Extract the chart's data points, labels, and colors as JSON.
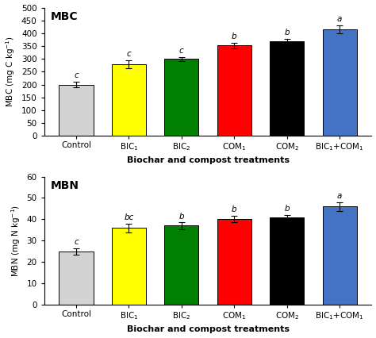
{
  "mbc": {
    "title": "MBC",
    "categories": [
      "Control",
      "BIC$_1$",
      "BIC$_2$",
      "COM$_1$",
      "COM$_2$",
      "BIC$_1$+COM$_1$"
    ],
    "values": [
      200,
      280,
      300,
      352,
      368,
      415
    ],
    "errors": [
      10,
      15,
      8,
      12,
      10,
      15
    ],
    "letters": [
      "c",
      "c",
      "c",
      "b",
      "b",
      "a"
    ],
    "colors": [
      "#d3d3d3",
      "#ffff00",
      "#008000",
      "#ff0000",
      "#000000",
      "#4472c4"
    ],
    "ylabel": "MBC (mg C kg$^{-1}$)",
    "xlabel": "Biochar and compost treatments",
    "ylim": [
      0,
      500
    ],
    "yticks": [
      0,
      50,
      100,
      150,
      200,
      250,
      300,
      350,
      400,
      450,
      500
    ]
  },
  "mbn": {
    "title": "MBN",
    "categories": [
      "Control",
      "BIC$_1$",
      "BIC$_2$",
      "COM$_1$",
      "COM$_2$",
      "BIC$_1$+COM$_1$"
    ],
    "values": [
      25,
      36,
      37,
      40,
      41,
      46
    ],
    "errors": [
      1.5,
      2.0,
      1.5,
      1.5,
      1.0,
      2.0
    ],
    "letters": [
      "c",
      "bc",
      "b",
      "b",
      "b",
      "a"
    ],
    "colors": [
      "#d3d3d3",
      "#ffff00",
      "#008000",
      "#ff0000",
      "#000000",
      "#4472c4"
    ],
    "ylabel": "MBN (mg N kg$^{-1}$)",
    "xlabel": "Biochar and compost treatments",
    "ylim": [
      0,
      60
    ],
    "yticks": [
      0,
      10,
      20,
      30,
      40,
      50,
      60
    ]
  },
  "figsize": [
    4.74,
    4.26
  ],
  "dpi": 100
}
